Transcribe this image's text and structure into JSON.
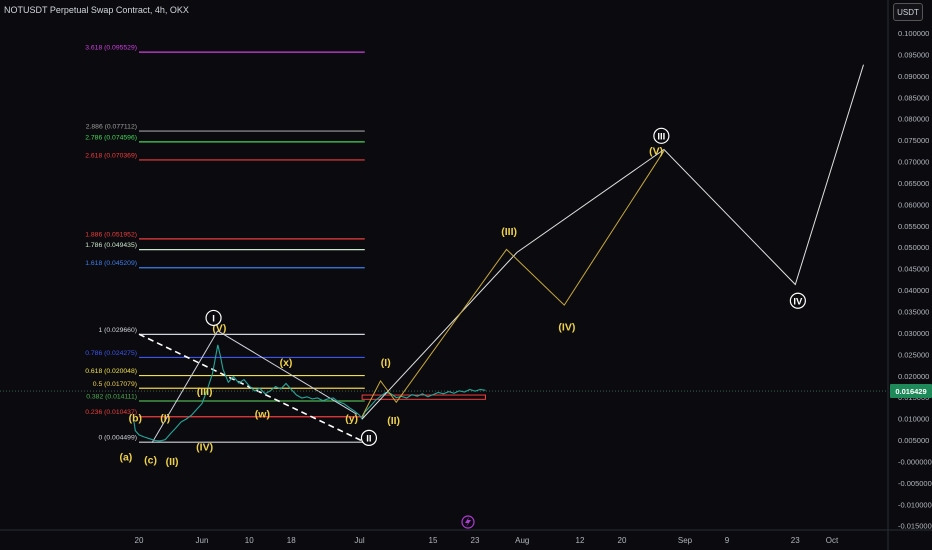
{
  "header": {
    "symbol": "NOTUSDT Perpetual Swap Contract, 4h, OKX",
    "currency": "USDT"
  },
  "chart_data": {
    "type": "line",
    "ylim": [
      -0.016,
      0.1035
    ],
    "y_ticks": [
      {
        "v": 0.1,
        "label": "0.100000"
      },
      {
        "v": 0.095,
        "label": "0.095000"
      },
      {
        "v": 0.09,
        "label": "0.090000"
      },
      {
        "v": 0.085,
        "label": "0.085000"
      },
      {
        "v": 0.08,
        "label": "0.080000"
      },
      {
        "v": 0.075,
        "label": "0.075000"
      },
      {
        "v": 0.07,
        "label": "0.070000"
      },
      {
        "v": 0.065,
        "label": "0.065000"
      },
      {
        "v": 0.06,
        "label": "0.060000"
      },
      {
        "v": 0.055,
        "label": "0.055000"
      },
      {
        "v": 0.05,
        "label": "0.050000"
      },
      {
        "v": 0.045,
        "label": "0.045000"
      },
      {
        "v": 0.04,
        "label": "0.040000"
      },
      {
        "v": 0.035,
        "label": "0.035000"
      },
      {
        "v": 0.03,
        "label": "0.030000"
      },
      {
        "v": 0.025,
        "label": "0.025000"
      },
      {
        "v": 0.02,
        "label": "0.020000"
      },
      {
        "v": 0.015,
        "label": "0.015000"
      },
      {
        "v": 0.01,
        "label": "0.010000"
      },
      {
        "v": 0.005,
        "label": "0.005000"
      },
      {
        "v": 0.0,
        "label": "-0.000000"
      },
      {
        "v": -0.005,
        "label": "-0.005000"
      },
      {
        "v": -0.01,
        "label": "-0.010000"
      },
      {
        "v": -0.015,
        "label": "-0.015000"
      }
    ],
    "x_ticks": [
      {
        "day": 20,
        "label": "20"
      },
      {
        "day": 32,
        "label": "Jun"
      },
      {
        "day": 41,
        "label": "10"
      },
      {
        "day": 49,
        "label": "18"
      },
      {
        "day": 62,
        "label": "Jul"
      },
      {
        "day": 76,
        "label": "15"
      },
      {
        "day": 84,
        "label": "23"
      },
      {
        "day": 93,
        "label": "Aug"
      },
      {
        "day": 104,
        "label": "12"
      },
      {
        "day": 112,
        "label": "20"
      },
      {
        "day": 124,
        "label": "Sep"
      },
      {
        "day": 132,
        "label": "9"
      },
      {
        "day": 145,
        "label": "23"
      },
      {
        "day": 152,
        "label": "Oct"
      }
    ],
    "current_price": {
      "value": 0.016429,
      "label": "0.016429"
    },
    "fib_levels": [
      {
        "price": 0.095529,
        "text": "3.618 (0.095529)",
        "color": "#cf3fe0"
      },
      {
        "price": 0.077112,
        "text": "2.886 (0.077112)",
        "color": "#9e9e9e"
      },
      {
        "price": 0.074596,
        "text": "2.786 (0.074596)",
        "color": "#43d65a"
      },
      {
        "price": 0.070369,
        "text": "2.618 (0.070369)",
        "color": "#ef3d3d"
      },
      {
        "price": 0.051952,
        "text": "1.886 (0.051952)",
        "color": "#ef3d3d"
      },
      {
        "price": 0.049435,
        "text": "1.786 (0.049435)",
        "color": "#c8e6c9"
      },
      {
        "price": 0.045209,
        "text": "1.618 (0.045209)",
        "color": "#3d7fef"
      },
      {
        "price": 0.02966,
        "text": "1 (0.029660)",
        "color": "#d1d4dc"
      },
      {
        "price": 0.024275,
        "text": "0.786 (0.024275)",
        "color": "#3d55ef"
      },
      {
        "price": 0.020048,
        "text": "0.618 (0.020048)",
        "color": "#f0e04a"
      },
      {
        "price": 0.017079,
        "text": "0.5 (0.017079)",
        "color": "#f0d24a"
      },
      {
        "price": 0.014111,
        "text": "0.382 (0.014111)",
        "color": "#4caf50"
      },
      {
        "price": 0.010437,
        "text": "0.236 (0.010437)",
        "color": "#ef3d3d"
      },
      {
        "price": 0.004499,
        "text": "0 (0.004499)",
        "color": "#d1d4dc"
      }
    ],
    "price_path": [
      [
        19,
        0.0095
      ],
      [
        19.3,
        0.0072
      ],
      [
        20,
        0.0062
      ],
      [
        21,
        0.0057
      ],
      [
        22,
        0.0053
      ],
      [
        23,
        0.0049
      ],
      [
        24,
        0.0048
      ],
      [
        25,
        0.0051
      ],
      [
        26,
        0.0065
      ],
      [
        27,
        0.0078
      ],
      [
        28,
        0.0092
      ],
      [
        29,
        0.0099
      ],
      [
        30,
        0.0108
      ],
      [
        31,
        0.0122
      ],
      [
        32,
        0.0135
      ],
      [
        33,
        0.0168
      ],
      [
        34,
        0.0205
      ],
      [
        35,
        0.0272
      ],
      [
        35.5,
        0.0246
      ],
      [
        36,
        0.0215
      ],
      [
        37,
        0.0185
      ],
      [
        38,
        0.0198
      ],
      [
        39,
        0.0183
      ],
      [
        40,
        0.0191
      ],
      [
        41,
        0.0176
      ],
      [
        42,
        0.0165
      ],
      [
        43,
        0.0171
      ],
      [
        44,
        0.0158
      ],
      [
        45,
        0.0165
      ],
      [
        46,
        0.0175
      ],
      [
        47,
        0.0169
      ],
      [
        48,
        0.0182
      ],
      [
        49,
        0.0168
      ],
      [
        50,
        0.0155
      ],
      [
        51,
        0.0148
      ],
      [
        52,
        0.0151
      ],
      [
        53,
        0.0146
      ],
      [
        54,
        0.0148
      ],
      [
        55,
        0.0142
      ],
      [
        56,
        0.0146
      ],
      [
        57,
        0.0148
      ],
      [
        58,
        0.0139
      ],
      [
        59,
        0.0135
      ],
      [
        60,
        0.0126
      ],
      [
        61,
        0.0118
      ],
      [
        62,
        0.0108
      ],
      [
        62.5,
        0.0099
      ],
      [
        63,
        0.0115
      ],
      [
        64,
        0.0128
      ],
      [
        65,
        0.0142
      ],
      [
        66,
        0.0152
      ],
      [
        67,
        0.0161
      ],
      [
        68,
        0.0158
      ],
      [
        69,
        0.0149
      ],
      [
        70,
        0.0152
      ],
      [
        71,
        0.0148
      ],
      [
        72,
        0.0156
      ],
      [
        73,
        0.0152
      ],
      [
        74,
        0.0158
      ],
      [
        75,
        0.0151
      ],
      [
        76,
        0.0156
      ],
      [
        77,
        0.0161
      ],
      [
        78,
        0.0158
      ],
      [
        79,
        0.0163
      ],
      [
        80,
        0.0159
      ],
      [
        81,
        0.0165
      ],
      [
        82,
        0.0162
      ],
      [
        83,
        0.0168
      ],
      [
        84,
        0.0164
      ],
      [
        85,
        0.0168
      ],
      [
        86,
        0.0166
      ]
    ],
    "projection_white": [
      [
        62.5,
        0.0099
      ],
      [
        92,
        0.0488
      ],
      [
        120,
        0.0728
      ],
      [
        145,
        0.0413
      ],
      [
        158,
        0.0926
      ]
    ],
    "projection_yellow": [
      [
        62.5,
        0.0105
      ],
      [
        66,
        0.0188
      ],
      [
        69,
        0.0138
      ],
      [
        90,
        0.0495
      ],
      [
        101,
        0.0365
      ],
      [
        120,
        0.0725
      ]
    ],
    "wave_labels": [
      {
        "text": "(a)",
        "day": 17.5,
        "price": 0.0012,
        "color": "#f0d24a",
        "circled": false
      },
      {
        "text": "(b)",
        "day": 19.3,
        "price": 0.0102,
        "color": "#f0d24a",
        "circled": false
      },
      {
        "text": "(c)",
        "day": 22.2,
        "price": 0.0005,
        "color": "#f0d24a",
        "circled": false
      },
      {
        "text": "(I)",
        "day": 25,
        "price": 0.0102,
        "color": "#f0d24a",
        "circled": false
      },
      {
        "text": "(II)",
        "day": 26.3,
        "price": 0.0001,
        "color": "#f0d24a",
        "circled": false
      },
      {
        "text": "(III)",
        "day": 32.5,
        "price": 0.0165,
        "color": "#f0d24a",
        "circled": false
      },
      {
        "text": "(IV)",
        "day": 32.5,
        "price": 0.0035,
        "color": "#f0d24a",
        "circled": false
      },
      {
        "text": "(V)",
        "day": 35.3,
        "price": 0.0313,
        "color": "#f0d24a",
        "circled": false
      },
      {
        "text": "(w)",
        "day": 43.5,
        "price": 0.0112,
        "color": "#f0d24a",
        "circled": false
      },
      {
        "text": "(x)",
        "day": 48,
        "price": 0.0232,
        "color": "#f0d24a",
        "circled": false
      },
      {
        "text": "(y)",
        "day": 60.5,
        "price": 0.0101,
        "color": "#f0d24a",
        "circled": false
      },
      {
        "text": "(I)",
        "day": 67,
        "price": 0.0232,
        "color": "#f0d24a",
        "circled": false
      },
      {
        "text": "(II)",
        "day": 68.5,
        "price": 0.0097,
        "color": "#f0d24a",
        "circled": false
      },
      {
        "text": "(III)",
        "day": 90.5,
        "price": 0.0538,
        "color": "#f0d24a",
        "circled": false
      },
      {
        "text": "(IV)",
        "day": 101.5,
        "price": 0.0315,
        "color": "#f0d24a",
        "circled": false
      },
      {
        "text": "(V)",
        "day": 118.5,
        "price": 0.0726,
        "color": "#f0d24a",
        "circled": false
      },
      {
        "text": "I",
        "day": 34.2,
        "price": 0.0335,
        "color": "#ffffff",
        "circled": true
      },
      {
        "text": "II",
        "day": 63.8,
        "price": 0.0055,
        "color": "#ffffff",
        "circled": true
      },
      {
        "text": "III",
        "day": 119.5,
        "price": 0.076,
        "color": "#ffffff",
        "circled": true
      },
      {
        "text": "IV",
        "day": 145.5,
        "price": 0.0375,
        "color": "#ffffff",
        "circled": true
      }
    ]
  }
}
